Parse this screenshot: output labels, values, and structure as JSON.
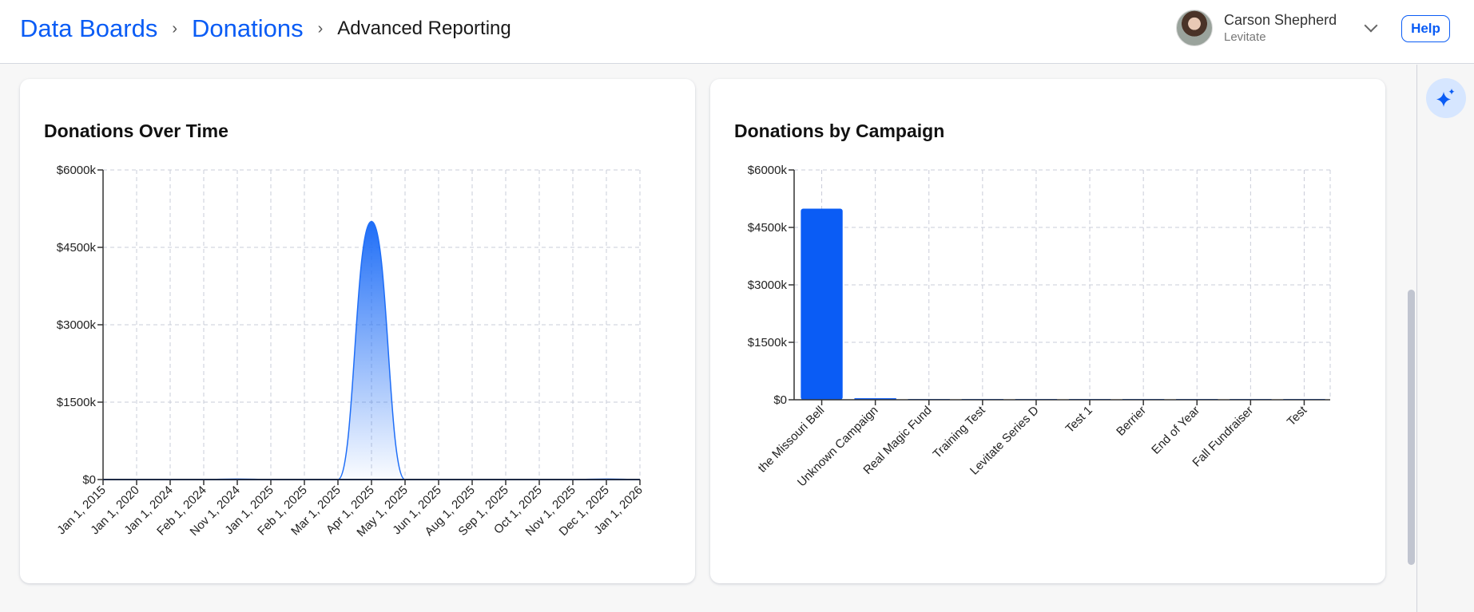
{
  "header": {
    "breadcrumbs": [
      {
        "label": "Data Boards"
      },
      {
        "label": "Donations"
      },
      {
        "label": "Advanced Reporting"
      }
    ],
    "separator": "›",
    "user": {
      "name": "Carson Shepherd",
      "org": "Levitate"
    },
    "help_label": "Help"
  },
  "icons": {
    "ai": "sparkle-icon",
    "menu": "chevron-down-icon"
  },
  "colors": {
    "accent": "#0a5cf5",
    "bar": "#0a5cf5",
    "area_top": "#1f6ef7",
    "grid": "#c9ccd8"
  },
  "chart_data": [
    {
      "type": "area",
      "title": "Donations Over Time",
      "xlabel": "",
      "ylabel": "",
      "ylim": [
        0,
        6000
      ],
      "y_unit": "$k",
      "yticks": [
        0,
        1500,
        3000,
        4500,
        6000
      ],
      "ytick_labels": [
        "$0",
        "$1500k",
        "$3000k",
        "$4500k",
        "$6000k"
      ],
      "categories": [
        "Jan 1, 2015",
        "Jan 1, 2020",
        "Jan 1, 2024",
        "Feb 1, 2024",
        "Nov 1, 2024",
        "Jan 1, 2025",
        "Feb 1, 2025",
        "Mar 1, 2025",
        "Apr 1, 2025",
        "May 1, 2025",
        "Jun 1, 2025",
        "Aug 1, 2025",
        "Sep 1, 2025",
        "Oct 1, 2025",
        "Nov 1, 2025",
        "Dec 1, 2025",
        "Jan 1, 2026"
      ],
      "values": [
        0,
        0,
        0,
        0,
        10,
        0,
        0,
        0,
        5000,
        0,
        0,
        0,
        0,
        0,
        0,
        10,
        0
      ],
      "grid": true
    },
    {
      "type": "bar",
      "title": "Donations by Campaign",
      "xlabel": "",
      "ylabel": "",
      "ylim": [
        0,
        6000
      ],
      "y_unit": "$k",
      "yticks": [
        0,
        1500,
        3000,
        4500,
        6000
      ],
      "ytick_labels": [
        "$0",
        "$1500k",
        "$3000k",
        "$4500k",
        "$6000k"
      ],
      "categories": [
        "the Missouri Bell",
        "Unknown Campaign",
        "Real Magic Fund",
        "Training Test",
        "Levitate Series D",
        "Test 1",
        "Berrier",
        "End of Year",
        "Fall Fundraiser",
        "Test"
      ],
      "values": [
        4990,
        40,
        5,
        2,
        1,
        1,
        1,
        1,
        1,
        1
      ],
      "grid": true
    }
  ]
}
